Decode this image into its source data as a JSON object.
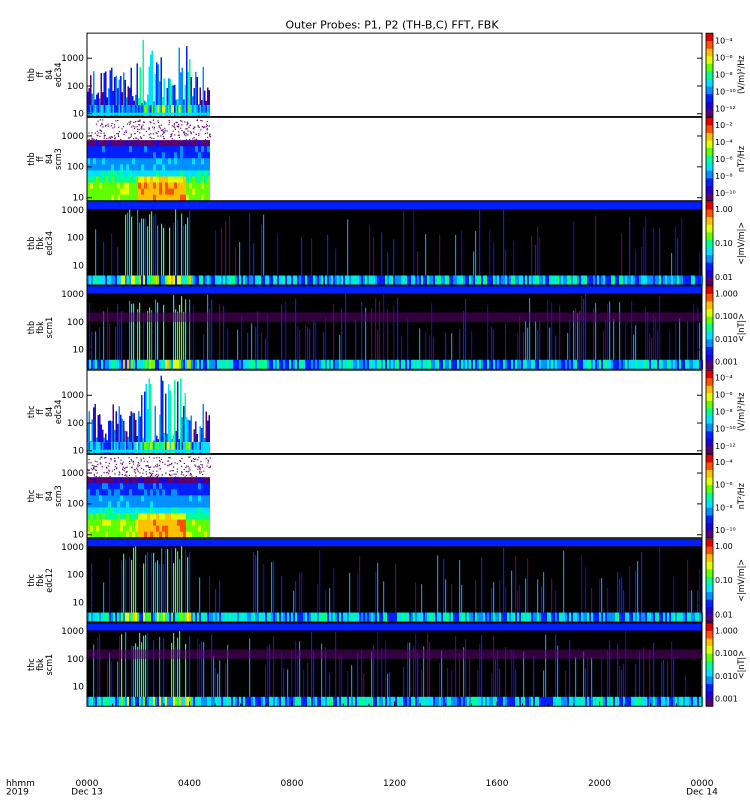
{
  "title": "Outer Probes: P1, P2 (TH-B,C) FFT, FBK",
  "x_axis": {
    "row_label": "hhmm",
    "year_label": "2019",
    "ticks": [
      {
        "label": "0000",
        "sub": "Dec 13"
      },
      {
        "label": "0400",
        "sub": ""
      },
      {
        "label": "0800",
        "sub": ""
      },
      {
        "label": "1200",
        "sub": ""
      },
      {
        "label": "1600",
        "sub": ""
      },
      {
        "label": "2000",
        "sub": ""
      },
      {
        "label": "0000",
        "sub": "Dec 14"
      }
    ]
  },
  "colors": {
    "colormap": [
      "#5a0070",
      "#2000d0",
      "#0020ff",
      "#0090ff",
      "#00e0ff",
      "#00ff90",
      "#60ff00",
      "#e0ff00",
      "#ffc000",
      "#ff5000",
      "#e00000"
    ],
    "missing": "#ffffff",
    "fbk_background": "#000000"
  },
  "chart_data": {
    "type": "heatmap",
    "x_range_hours": [
      0,
      24
    ],
    "panels": [
      {
        "ylabel": [
          "thb",
          "ff",
          "84",
          "edc34"
        ],
        "y_ticks": [
          "1000",
          "100",
          "10"
        ],
        "y_log_range": [
          8,
          8000
        ],
        "data_end_hour": 4.8,
        "kind": "fft",
        "colorbar": {
          "ticks": [
            "10⁻⁴",
            "10⁻⁶",
            "10⁻⁸",
            "10⁻¹⁰",
            "10⁻¹²"
          ],
          "unit": "(V/m)²/Hz"
        }
      },
      {
        "ylabel": [
          "thb",
          "ff",
          "84",
          "scm3"
        ],
        "y_ticks": [
          "1000",
          "100",
          "10"
        ],
        "y_log_range": [
          8,
          4000
        ],
        "data_end_hour": 4.8,
        "kind": "fft_scm",
        "colorbar": {
          "ticks": [
            "10⁻²",
            "10⁻⁴",
            "10⁻⁶",
            "10⁻⁸",
            "10⁻¹⁰"
          ],
          "unit": "nT²/Hz"
        }
      },
      {
        "ylabel": [
          "thb",
          "fbk",
          "edc34"
        ],
        "y_ticks": [
          "1000",
          "100",
          "10"
        ],
        "y_log_range": [
          2,
          2000
        ],
        "data_end_hour": 24,
        "kind": "fbk_e",
        "colorbar": {
          "ticks": [
            "1.00",
            "0.10",
            "0.01"
          ],
          "unit": "<|mV/m|>"
        }
      },
      {
        "ylabel": [
          "thb",
          "fbk",
          "scm1"
        ],
        "y_ticks": [
          "1000",
          "100",
          "10"
        ],
        "y_log_range": [
          2,
          2000
        ],
        "data_end_hour": 24,
        "kind": "fbk_b",
        "colorbar": {
          "ticks": [
            "1.000",
            "0.100",
            "0.010",
            "0.001"
          ],
          "unit": "<|nT|>"
        }
      },
      {
        "ylabel": [
          "thc",
          "ff",
          "84",
          "edc34"
        ],
        "y_ticks": [
          "1000",
          "100",
          "10"
        ],
        "y_log_range": [
          8,
          8000
        ],
        "data_end_hour": 4.8,
        "kind": "fft",
        "colorbar": {
          "ticks": [
            "10⁻⁴",
            "10⁻⁶",
            "10⁻⁸",
            "10⁻¹⁰",
            "10⁻¹²"
          ],
          "unit": "(V/m)²/Hz"
        }
      },
      {
        "ylabel": [
          "thc",
          "ff",
          "84",
          "scm3"
        ],
        "y_ticks": [
          "1000",
          "100",
          "10"
        ],
        "y_log_range": [
          8,
          4000
        ],
        "data_end_hour": 4.8,
        "kind": "fft_scm",
        "colorbar": {
          "ticks": [
            "10⁻⁴",
            "10⁻⁶",
            "10⁻⁸",
            "10⁻¹⁰"
          ],
          "unit": "nT²/Hz"
        }
      },
      {
        "ylabel": [
          "thc",
          "fbk",
          "edc12"
        ],
        "y_ticks": [
          "1000",
          "100",
          "10"
        ],
        "y_log_range": [
          2,
          2000
        ],
        "data_end_hour": 24,
        "kind": "fbk_e",
        "colorbar": {
          "ticks": [
            "1.00",
            "0.10",
            "0.01"
          ],
          "unit": "<|mV/m|>"
        }
      },
      {
        "ylabel": [
          "thc",
          "fbk",
          "scm1"
        ],
        "y_ticks": [
          "1000",
          "100",
          "10"
        ],
        "y_log_range": [
          2,
          2000
        ],
        "data_end_hour": 24,
        "kind": "fbk_b",
        "colorbar": {
          "ticks": [
            "1.000",
            "0.100",
            "0.010",
            "0.001"
          ],
          "unit": "<|nT|>"
        }
      }
    ]
  }
}
